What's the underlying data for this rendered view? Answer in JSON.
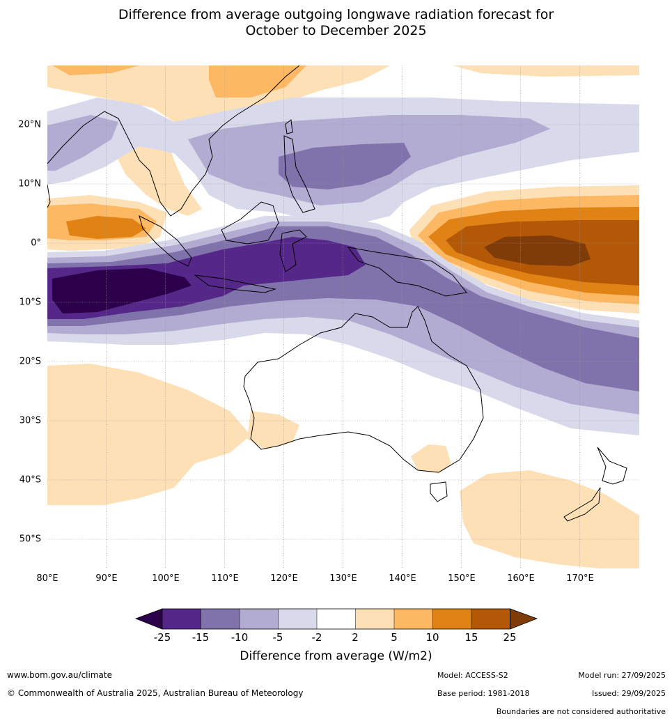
{
  "title": {
    "line1": "Difference from average outgoing longwave radiation forecast for",
    "line2": "October to December 2025"
  },
  "map": {
    "lon_labels": [
      "80°E",
      "90°E",
      "100°E",
      "110°E",
      "120°E",
      "130°E",
      "140°E",
      "150°E",
      "160°E",
      "170°E"
    ],
    "lat_labels": [
      "20°N",
      "10°N",
      "0°",
      "10°S",
      "20°S",
      "30°S",
      "40°S",
      "50°S"
    ],
    "extent": {
      "lon_min": 80,
      "lon_max": 180,
      "lat_min": -55,
      "lat_max": 30
    },
    "colors": {
      "-25": "#2d004b",
      "-15": "#542788",
      "-10": "#8073ac",
      "-5": "#b2abd2",
      "-2": "#d8daeb",
      "0": "#ffffff",
      "2": "#fee0b6",
      "5": "#fdb863",
      "10": "#e08214",
      "15": "#b35806",
      "25": "#7f3b08"
    }
  },
  "colorbar": {
    "ticks": [
      "-25",
      "-15",
      "-10",
      "-5",
      "-2",
      "2",
      "5",
      "10",
      "15",
      "25"
    ],
    "label": "Difference from average (W/m2)"
  },
  "footer": {
    "website": "www.bom.gov.au/climate",
    "copyright": "© Commonwealth of Australia 2025, Australian Bureau of Meteorology",
    "model": "Model: ACCESS-S2",
    "base_period": "Base period: 1981-2018",
    "model_run": "Model run: 27/09/2025",
    "issued": "Issued: 29/09/2025",
    "disclaimer": "Boundaries are not considered authoritative"
  }
}
